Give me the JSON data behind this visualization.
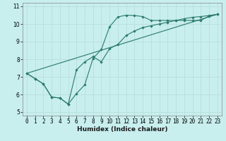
{
  "xlabel": "Humidex (Indice chaleur)",
  "bg_color": "#c8eeee",
  "grid_color": "#b8dede",
  "line_color": "#2a7a6a",
  "xlim": [
    -0.5,
    23.5
  ],
  "ylim": [
    4.8,
    11.2
  ],
  "xticks": [
    0,
    1,
    2,
    3,
    4,
    5,
    6,
    7,
    8,
    9,
    10,
    11,
    12,
    13,
    14,
    15,
    16,
    17,
    18,
    19,
    20,
    21,
    22,
    23
  ],
  "yticks": [
    5,
    6,
    7,
    8,
    9,
    10,
    11
  ],
  "line1_x": [
    0,
    1,
    2,
    3,
    4,
    5,
    6,
    7,
    8,
    9,
    10,
    11,
    12,
    13,
    14,
    15,
    16,
    17,
    18,
    19,
    20,
    21,
    22,
    23
  ],
  "line1_y": [
    7.2,
    6.9,
    6.6,
    5.85,
    5.8,
    5.45,
    6.05,
    6.55,
    8.05,
    8.55,
    9.85,
    10.4,
    10.5,
    10.48,
    10.42,
    10.2,
    10.2,
    10.2,
    10.2,
    10.2,
    10.2,
    10.2,
    10.45,
    10.55
  ],
  "line2_x": [
    0,
    1,
    2,
    3,
    4,
    5,
    6,
    7,
    8,
    9,
    10,
    11,
    12,
    13,
    14,
    15,
    16,
    17,
    18,
    19,
    20,
    21,
    22,
    23
  ],
  "line2_y": [
    7.2,
    6.9,
    6.6,
    5.85,
    5.8,
    5.45,
    7.4,
    7.85,
    8.15,
    7.85,
    8.6,
    8.85,
    9.35,
    9.6,
    9.8,
    9.9,
    10.0,
    10.1,
    10.2,
    10.3,
    10.38,
    10.42,
    10.48,
    10.55
  ],
  "line3_x": [
    0,
    23
  ],
  "line3_y": [
    7.2,
    10.55
  ],
  "xlabel_fontsize": 6.5,
  "tick_fontsize": 5.5
}
